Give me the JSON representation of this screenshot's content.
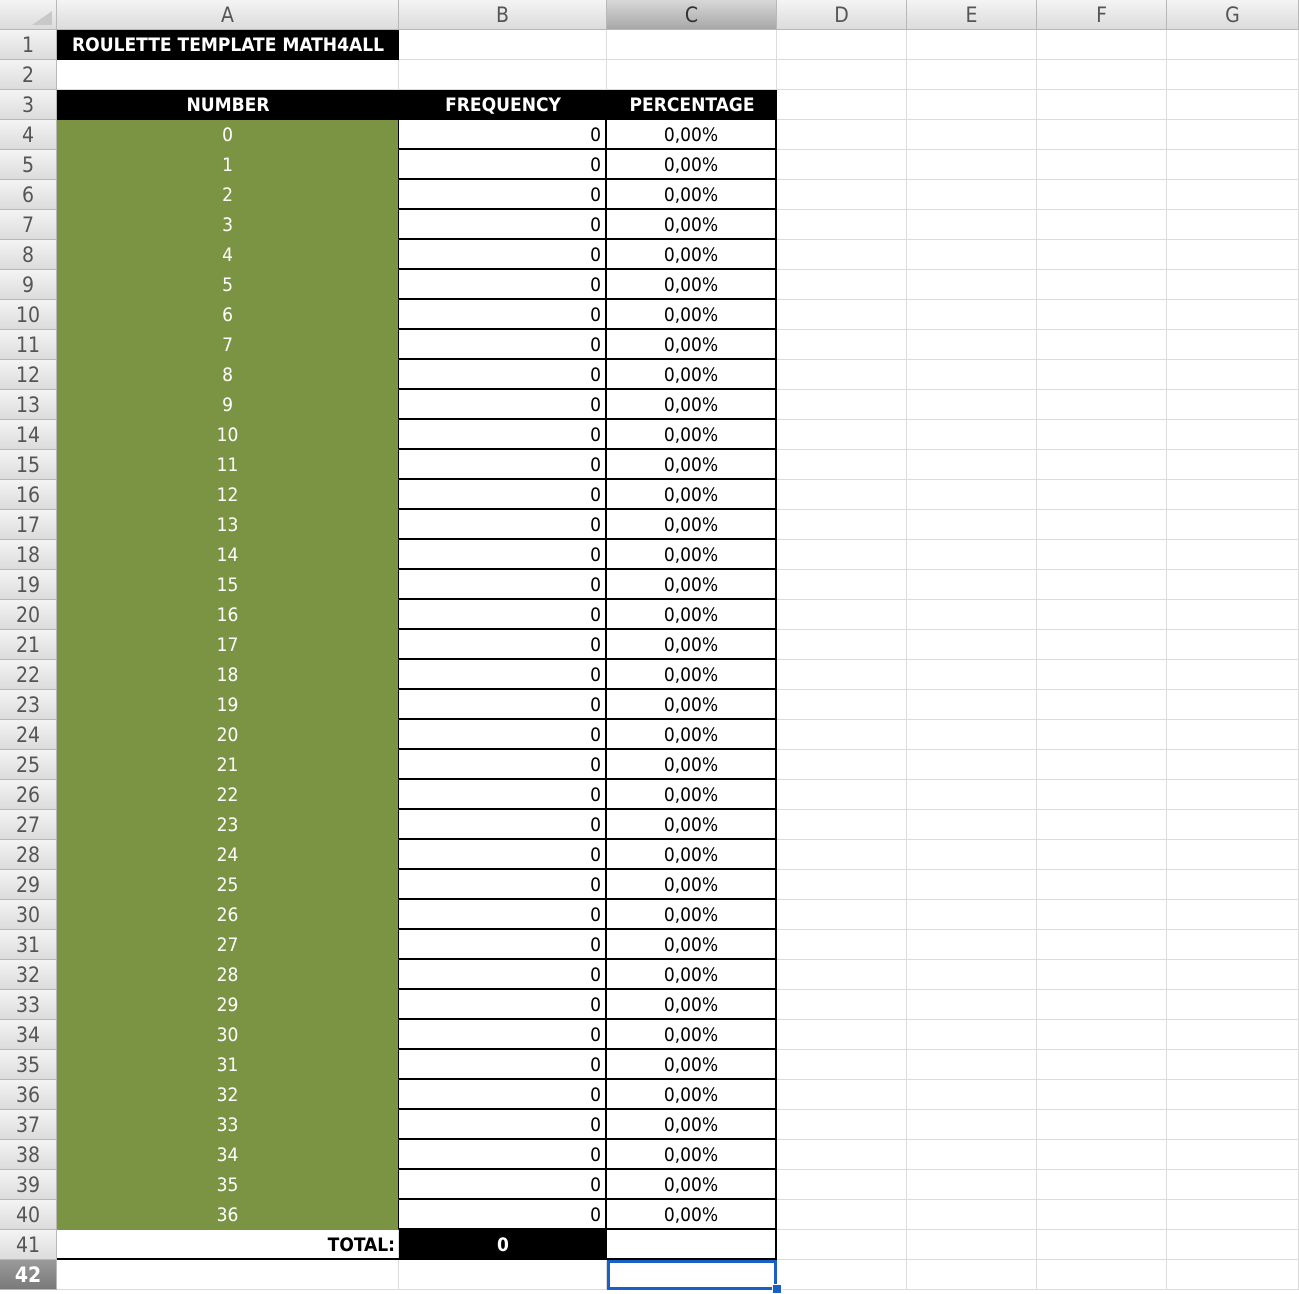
{
  "columns": [
    "A",
    "B",
    "C",
    "D",
    "E",
    "F",
    "G"
  ],
  "selected_column": "C",
  "selected_row": 42,
  "rows_count": 42,
  "title": "ROULETTE TEMPLATE MATH4ALL",
  "table_headers": {
    "number": "NUMBER",
    "frequency": "FREQUENCY",
    "percentage": "PERCENTAGE"
  },
  "table_rows": [
    {
      "number": "0",
      "frequency": "0",
      "percentage": "0,00%"
    },
    {
      "number": "1",
      "frequency": "0",
      "percentage": "0,00%"
    },
    {
      "number": "2",
      "frequency": "0",
      "percentage": "0,00%"
    },
    {
      "number": "3",
      "frequency": "0",
      "percentage": "0,00%"
    },
    {
      "number": "4",
      "frequency": "0",
      "percentage": "0,00%"
    },
    {
      "number": "5",
      "frequency": "0",
      "percentage": "0,00%"
    },
    {
      "number": "6",
      "frequency": "0",
      "percentage": "0,00%"
    },
    {
      "number": "7",
      "frequency": "0",
      "percentage": "0,00%"
    },
    {
      "number": "8",
      "frequency": "0",
      "percentage": "0,00%"
    },
    {
      "number": "9",
      "frequency": "0",
      "percentage": "0,00%"
    },
    {
      "number": "10",
      "frequency": "0",
      "percentage": "0,00%"
    },
    {
      "number": "11",
      "frequency": "0",
      "percentage": "0,00%"
    },
    {
      "number": "12",
      "frequency": "0",
      "percentage": "0,00%"
    },
    {
      "number": "13",
      "frequency": "0",
      "percentage": "0,00%"
    },
    {
      "number": "14",
      "frequency": "0",
      "percentage": "0,00%"
    },
    {
      "number": "15",
      "frequency": "0",
      "percentage": "0,00%"
    },
    {
      "number": "16",
      "frequency": "0",
      "percentage": "0,00%"
    },
    {
      "number": "17",
      "frequency": "0",
      "percentage": "0,00%"
    },
    {
      "number": "18",
      "frequency": "0",
      "percentage": "0,00%"
    },
    {
      "number": "19",
      "frequency": "0",
      "percentage": "0,00%"
    },
    {
      "number": "20",
      "frequency": "0",
      "percentage": "0,00%"
    },
    {
      "number": "21",
      "frequency": "0",
      "percentage": "0,00%"
    },
    {
      "number": "22",
      "frequency": "0",
      "percentage": "0,00%"
    },
    {
      "number": "23",
      "frequency": "0",
      "percentage": "0,00%"
    },
    {
      "number": "24",
      "frequency": "0",
      "percentage": "0,00%"
    },
    {
      "number": "25",
      "frequency": "0",
      "percentage": "0,00%"
    },
    {
      "number": "26",
      "frequency": "0",
      "percentage": "0,00%"
    },
    {
      "number": "27",
      "frequency": "0",
      "percentage": "0,00%"
    },
    {
      "number": "28",
      "frequency": "0",
      "percentage": "0,00%"
    },
    {
      "number": "29",
      "frequency": "0",
      "percentage": "0,00%"
    },
    {
      "number": "30",
      "frequency": "0",
      "percentage": "0,00%"
    },
    {
      "number": "31",
      "frequency": "0",
      "percentage": "0,00%"
    },
    {
      "number": "32",
      "frequency": "0",
      "percentage": "0,00%"
    },
    {
      "number": "33",
      "frequency": "0",
      "percentage": "0,00%"
    },
    {
      "number": "34",
      "frequency": "0",
      "percentage": "0,00%"
    },
    {
      "number": "35",
      "frequency": "0",
      "percentage": "0,00%"
    },
    {
      "number": "36",
      "frequency": "0",
      "percentage": "0,00%"
    }
  ],
  "total": {
    "label": "TOTAL:",
    "value": "0"
  },
  "colors": {
    "number_fill": "#7a9443",
    "header_fill": "#000000",
    "selection": "#1a5fc4"
  }
}
